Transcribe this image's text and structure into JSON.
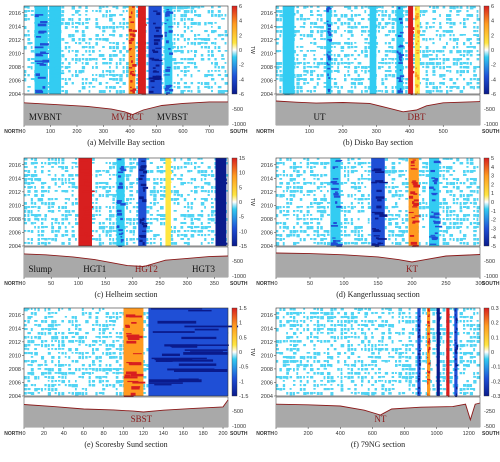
{
  "figure": {
    "units": "TW",
    "edge_left": "NORTH",
    "edge_right": "SOUTH",
    "years": [
      2004,
      2006,
      2008,
      2010,
      2012,
      2014,
      2016
    ],
    "colors": {
      "cyan": "#33ccf2",
      "blue": "#1f4fd6",
      "navy": "#0a1a8c",
      "yellow": "#ffe640",
      "orange": "#ff9a20",
      "red": "#d81f1f",
      "bed": "#a9a9a9",
      "sill_line": "#8b1a1a"
    }
  },
  "chart_data": [
    {
      "type": "heatmap",
      "caption": "(a) Melville Bay section",
      "xticks": [
        0,
        100,
        200,
        300,
        400,
        500,
        600,
        700
      ],
      "xlim": [
        0,
        770
      ],
      "ylim": [
        2004,
        2017
      ],
      "cbar_ticks": [
        6,
        4,
        2,
        0,
        -2,
        -4,
        -6
      ],
      "depth_ticks": [
        0,
        500,
        1000
      ],
      "bed_depths": [
        [
          0,
          260
        ],
        [
          120,
          320
        ],
        [
          240,
          380
        ],
        [
          330,
          470
        ],
        [
          380,
          560
        ],
        [
          410,
          650
        ],
        [
          450,
          500
        ],
        [
          520,
          350
        ],
        [
          600,
          280
        ],
        [
          700,
          230
        ],
        [
          770,
          230
        ]
      ],
      "bands": [
        [
          40,
          90,
          -2.5
        ],
        [
          95,
          140,
          -1.5
        ],
        [
          395,
          420,
          2.5
        ],
        [
          430,
          460,
          4
        ],
        [
          470,
          520,
          -3.5
        ],
        [
          530,
          560,
          -2.5
        ]
      ],
      "sills": [
        {
          "label": "MVBNT",
          "x": 80,
          "color": "#111111"
        },
        {
          "label": "MVBCT",
          "x": 390,
          "color": "#8b1a1a"
        },
        {
          "label": "MVBST",
          "x": 560,
          "color": "#111111"
        }
      ]
    },
    {
      "type": "heatmap",
      "caption": "(b) Disko Bay section",
      "xticks": [
        100,
        200,
        300,
        400,
        500
      ],
      "xlim": [
        0,
        610
      ],
      "ylim": [
        2004,
        2017
      ],
      "cbar_ticks": [
        6,
        4,
        2,
        0,
        -2,
        -4,
        -6
      ],
      "depth_ticks": [
        0,
        500,
        1000
      ],
      "bed_depths": [
        [
          0,
          200
        ],
        [
          60,
          240
        ],
        [
          120,
          270
        ],
        [
          200,
          250
        ],
        [
          280,
          280
        ],
        [
          330,
          420
        ],
        [
          380,
          560
        ],
        [
          420,
          500
        ],
        [
          450,
          360
        ],
        [
          500,
          260
        ],
        [
          610,
          220
        ]
      ],
      "bands": [
        [
          20,
          55,
          -1.5
        ],
        [
          150,
          165,
          -2
        ],
        [
          280,
          300,
          -1.5
        ],
        [
          360,
          380,
          -2
        ],
        [
          395,
          410,
          4
        ],
        [
          415,
          430,
          2
        ]
      ],
      "sills": [
        {
          "label": "UT",
          "x": 130,
          "color": "#111111"
        },
        {
          "label": "DBT",
          "x": 420,
          "color": "#8b1a1a"
        }
      ]
    },
    {
      "type": "heatmap",
      "caption": "(c) Helheim section",
      "xticks": [
        0,
        50,
        100,
        150,
        200,
        250,
        300,
        350
      ],
      "xlim": [
        0,
        375
      ],
      "ylim": [
        2004,
        2017
      ],
      "cbar_ticks": [
        15,
        10,
        5,
        0,
        -5,
        -10,
        -15
      ],
      "depth_ticks": [
        0,
        500,
        1000
      ],
      "bed_depths": [
        [
          0,
          230
        ],
        [
          40,
          260
        ],
        [
          90,
          330
        ],
        [
          130,
          420
        ],
        [
          160,
          520
        ],
        [
          190,
          620
        ],
        [
          220,
          650
        ],
        [
          260,
          440
        ],
        [
          300,
          380
        ],
        [
          340,
          320
        ],
        [
          375,
          300
        ]
      ],
      "bands": [
        [
          100,
          125,
          10
        ],
        [
          170,
          185,
          -6
        ],
        [
          210,
          225,
          -8
        ],
        [
          260,
          270,
          3
        ],
        [
          352,
          372,
          -14
        ]
      ],
      "sills": [
        {
          "label": "Slump",
          "x": 30,
          "color": "#111111"
        },
        {
          "label": "HGT1",
          "x": 130,
          "color": "#111111"
        },
        {
          "label": "HGT2",
          "x": 225,
          "color": "#8b1a1a"
        },
        {
          "label": "HGT3",
          "x": 330,
          "color": "#111111"
        }
      ]
    },
    {
      "type": "heatmap",
      "caption": "(d) Kangerlussuaq section",
      "xticks": [
        0,
        50,
        100,
        150,
        200,
        250,
        300
      ],
      "xlim": [
        0,
        300
      ],
      "ylim": [
        2004,
        2017
      ],
      "cbar_ticks": [
        5,
        4,
        3,
        2,
        1,
        0,
        -1,
        -2,
        -3,
        -4,
        -5
      ],
      "depth_ticks": [
        0,
        500,
        1000
      ],
      "bed_depths": [
        [
          0,
          200
        ],
        [
          50,
          220
        ],
        [
          100,
          260
        ],
        [
          150,
          330
        ],
        [
          180,
          420
        ],
        [
          200,
          500
        ],
        [
          220,
          420
        ],
        [
          250,
          300
        ],
        [
          300,
          250
        ]
      ],
      "bands": [
        [
          80,
          95,
          -2
        ],
        [
          140,
          160,
          -3
        ],
        [
          195,
          210,
          3
        ],
        [
          225,
          240,
          -2
        ]
      ],
      "sills": [
        {
          "label": "KT",
          "x": 200,
          "color": "#8b1a1a"
        }
      ]
    },
    {
      "type": "heatmap",
      "caption": "(e) Scoresby Sund section",
      "xticks": [
        0,
        20,
        40,
        60,
        80,
        100,
        120,
        140,
        160,
        180,
        200
      ],
      "xlim": [
        0,
        205
      ],
      "ylim": [
        2004,
        2017
      ],
      "cbar_ticks": [
        1.5,
        1,
        0.5,
        0,
        -0.5,
        -1,
        -1.5
      ],
      "depth_ticks": [
        0,
        500,
        1000
      ],
      "bed_depths": [
        [
          0,
          250
        ],
        [
          30,
          320
        ],
        [
          60,
          400
        ],
        [
          90,
          430
        ],
        [
          110,
          470
        ],
        [
          120,
          500
        ],
        [
          140,
          440
        ],
        [
          170,
          380
        ],
        [
          200,
          330
        ],
        [
          205,
          100
        ]
      ],
      "bands": [
        [
          100,
          120,
          0.9
        ],
        [
          125,
          205,
          -0.9
        ]
      ],
      "sills": [
        {
          "label": "SBST",
          "x": 118,
          "color": "#8b1a1a"
        }
      ]
    },
    {
      "type": "heatmap",
      "caption": "(f) 79NG section",
      "xticks": [
        0,
        200,
        400,
        600,
        800,
        1000,
        1200
      ],
      "xlim": [
        0,
        1270
      ],
      "ylim": [
        2004,
        2017
      ],
      "cbar_ticks": [
        0.3,
        0.2,
        0.1,
        0,
        -0.1,
        -0.2,
        -0.3
      ],
      "depth_ticks": [
        0,
        250,
        500
      ],
      "bed_depths": [
        [
          0,
          120
        ],
        [
          200,
          130
        ],
        [
          400,
          150
        ],
        [
          550,
          220
        ],
        [
          650,
          300
        ],
        [
          720,
          200
        ],
        [
          900,
          170
        ],
        [
          1100,
          160
        ],
        [
          1180,
          120
        ],
        [
          1210,
          380
        ],
        [
          1240,
          120
        ],
        [
          1270,
          100
        ]
      ],
      "bands": [
        [
          880,
          900,
          -0.2
        ],
        [
          940,
          960,
          0.15
        ],
        [
          1000,
          1020,
          -0.25
        ],
        [
          1060,
          1080,
          0.2
        ],
        [
          1110,
          1130,
          -0.2
        ]
      ],
      "sills": [
        {
          "label": "NT",
          "x": 650,
          "color": "#8b1a1a"
        }
      ]
    }
  ]
}
